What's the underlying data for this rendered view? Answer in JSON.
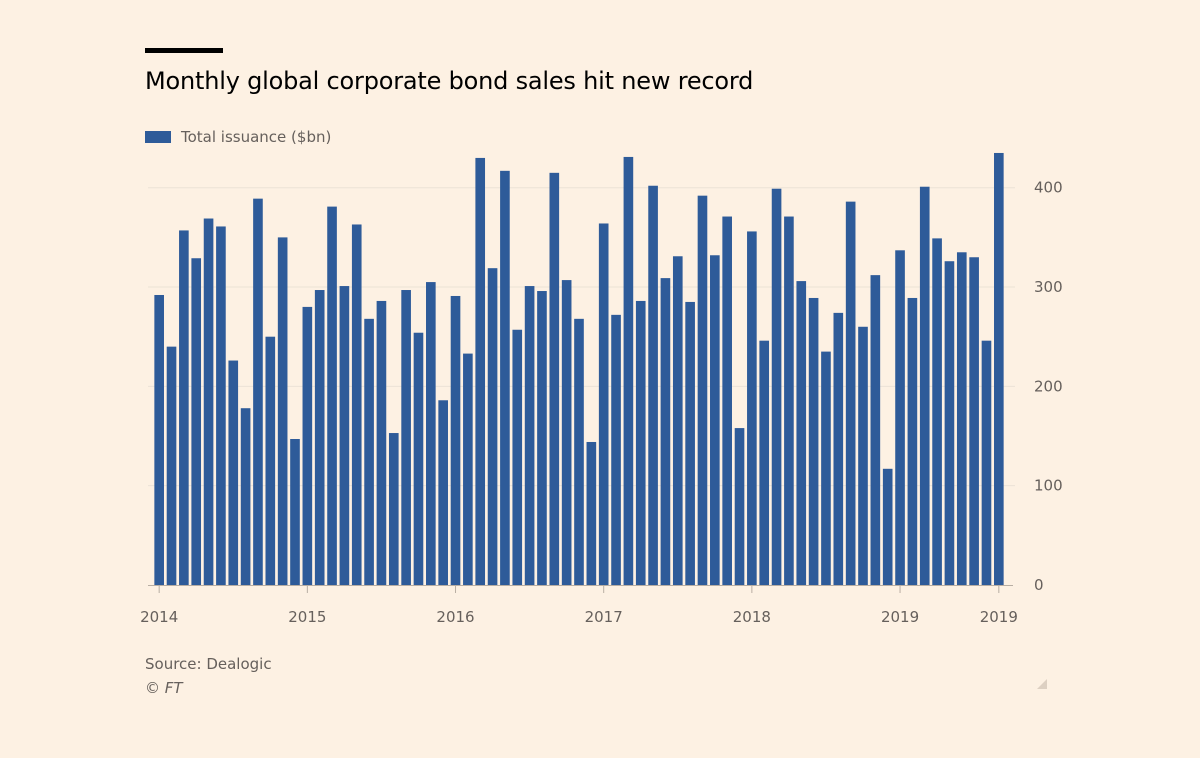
{
  "header": {
    "title": "Monthly global corporate bond sales hit new record"
  },
  "legend": {
    "label": "Total issuance ($bn)"
  },
  "footer": {
    "source": "Source: Dealogic",
    "credit": "© FT"
  },
  "colors": {
    "bar": "#2e5b99",
    "background": "#fdf1e3",
    "grid": "#ece2d6",
    "axis_text": "#66605c"
  },
  "chart_data": {
    "type": "bar",
    "ylim": [
      0,
      440
    ],
    "y_ticks": [
      0,
      100,
      200,
      300,
      400
    ],
    "y_axis_side": "right",
    "grid": true,
    "legend_position": "top-left",
    "x_tick_labels": [
      {
        "label": "2014",
        "index": 0
      },
      {
        "label": "2015",
        "index": 12
      },
      {
        "label": "2016",
        "index": 24
      },
      {
        "label": "2017",
        "index": 36
      },
      {
        "label": "2018",
        "index": 48
      },
      {
        "label": "2019",
        "index": 60
      },
      {
        "label": "2019",
        "index": 68
      }
    ],
    "series": [
      {
        "name": "Total issuance ($bn)",
        "values": [
          292,
          240,
          357,
          329,
          369,
          361,
          226,
          178,
          389,
          250,
          350,
          147,
          280,
          297,
          381,
          301,
          363,
          268,
          286,
          153,
          297,
          254,
          305,
          186,
          291,
          233,
          430,
          319,
          417,
          257,
          301,
          296,
          415,
          307,
          268,
          144,
          364,
          272,
          431,
          286,
          402,
          309,
          331,
          285,
          392,
          332,
          371,
          158,
          356,
          246,
          399,
          371,
          306,
          289,
          235,
          274,
          386,
          260,
          312,
          117,
          337,
          289,
          401,
          349,
          326,
          335,
          330,
          246,
          435
        ]
      }
    ]
  }
}
